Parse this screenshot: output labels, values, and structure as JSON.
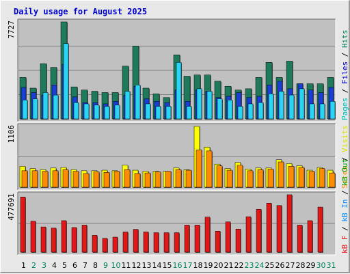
{
  "title": "Daily usage for August 2025",
  "colors": {
    "panel_bg": "#c0c0c0",
    "grid": "#808080",
    "hits": "#1f7a5c",
    "files": "#1a3fd6",
    "pages": "#2ad4f4",
    "visits": "#ffff00",
    "sites": "#ff8c00",
    "kb": "#e01818",
    "weekday_label": "#000000",
    "weekend_label": "#00805c",
    "label_pages": "#00c0c0",
    "label_files": "#0000cc",
    "label_hits": "#00805c",
    "label_visits": "#e0e000",
    "label_sites": "#ff8c00",
    "label_kbout": "#00a000",
    "label_kbin": "#0088ff",
    "label_kbf": "#e01818"
  },
  "labels": {
    "pages": "Pages",
    "files": "Files",
    "hits": "Hits",
    "visits": "Visits",
    "sites": "Sites",
    "kbout": "kB Out",
    "kbin": "kB In",
    "kbf": "kB F",
    "sep": " / "
  },
  "chart_data": [
    {
      "type": "bar",
      "panel": "hits-files-pages",
      "categories": [
        "1",
        "2",
        "3",
        "4",
        "5",
        "6",
        "7",
        "8",
        "9",
        "10",
        "11",
        "12",
        "13",
        "14",
        "15",
        "16",
        "17",
        "18",
        "19",
        "20",
        "21",
        "22",
        "23",
        "24",
        "25",
        "26",
        "27",
        "28",
        "29",
        "30",
        "31"
      ],
      "weekend_days": [
        "2",
        "3",
        "9",
        "10",
        "16",
        "17",
        "23",
        "24",
        "30",
        "31"
      ],
      "ymax_label": "7727",
      "ymax": 7727,
      "series": [
        {
          "name": "Hits",
          "values": [
            3300,
            2450,
            4400,
            4100,
            7727,
            2550,
            2300,
            2200,
            2100,
            2100,
            4200,
            5800,
            2450,
            2000,
            1700,
            5100,
            3400,
            3500,
            3500,
            3000,
            2600,
            2300,
            2400,
            3300,
            4500,
            3300,
            4600,
            2800,
            2800,
            2800,
            3300
          ]
        },
        {
          "name": "Files",
          "values": [
            2500,
            2100,
            1900,
            2700,
            4350,
            1750,
            1300,
            1300,
            1200,
            1400,
            1900,
            2600,
            1600,
            1400,
            1300,
            2300,
            1400,
            2300,
            2200,
            1700,
            1800,
            2100,
            1700,
            1800,
            2700,
            3000,
            2400,
            2800,
            2300,
            2100,
            2500
          ]
        },
        {
          "name": "Pages",
          "values": [
            1500,
            1600,
            2100,
            1900,
            6000,
            1300,
            1200,
            1100,
            1000,
            1100,
            2200,
            2700,
            1200,
            1000,
            1000,
            4500,
            1000,
            2400,
            2200,
            1600,
            1500,
            1000,
            1200,
            1300,
            2000,
            2200,
            1900,
            2400,
            1200,
            1200,
            1400
          ]
        }
      ]
    },
    {
      "type": "bar",
      "panel": "visits-sites",
      "categories": [
        "1",
        "2",
        "3",
        "4",
        "5",
        "6",
        "7",
        "8",
        "9",
        "10",
        "11",
        "12",
        "13",
        "14",
        "15",
        "16",
        "17",
        "18",
        "19",
        "20",
        "21",
        "22",
        "23",
        "24",
        "25",
        "26",
        "27",
        "28",
        "29",
        "30",
        "31"
      ],
      "ymax_label": "1106",
      "ymax": 1106,
      "series": [
        {
          "name": "Visits",
          "values": [
            380,
            340,
            320,
            350,
            360,
            320,
            300,
            300,
            310,
            300,
            400,
            310,
            290,
            290,
            290,
            350,
            320,
            1106,
            730,
            420,
            340,
            450,
            330,
            350,
            350,
            500,
            430,
            390,
            310,
            360,
            310
          ]
        },
        {
          "name": "Sites",
          "values": [
            300,
            300,
            290,
            300,
            320,
            290,
            250,
            280,
            270,
            290,
            320,
            250,
            260,
            280,
            290,
            320,
            310,
            680,
            660,
            390,
            310,
            400,
            300,
            320,
            330,
            460,
            380,
            360,
            290,
            340,
            260
          ]
        }
      ]
    },
    {
      "type": "bar",
      "panel": "kb",
      "categories": [
        "1",
        "2",
        "3",
        "4",
        "5",
        "6",
        "7",
        "8",
        "9",
        "10",
        "11",
        "12",
        "13",
        "14",
        "15",
        "16",
        "17",
        "18",
        "19",
        "20",
        "21",
        "22",
        "23",
        "24",
        "25",
        "26",
        "27",
        "28",
        "29",
        "30",
        "31"
      ],
      "ymax_label": "477691",
      "ymax": 477691,
      "series": [
        {
          "name": "kB F",
          "values": [
            459000,
            258000,
            210000,
            200000,
            262000,
            205000,
            225000,
            140000,
            115000,
            125000,
            168000,
            190000,
            168000,
            162000,
            162000,
            162000,
            225000,
            225000,
            292000,
            175000,
            252000,
            192000,
            295000,
            357000,
            408000,
            388000,
            477691,
            225000,
            262000,
            375000,
            0
          ]
        }
      ]
    }
  ]
}
